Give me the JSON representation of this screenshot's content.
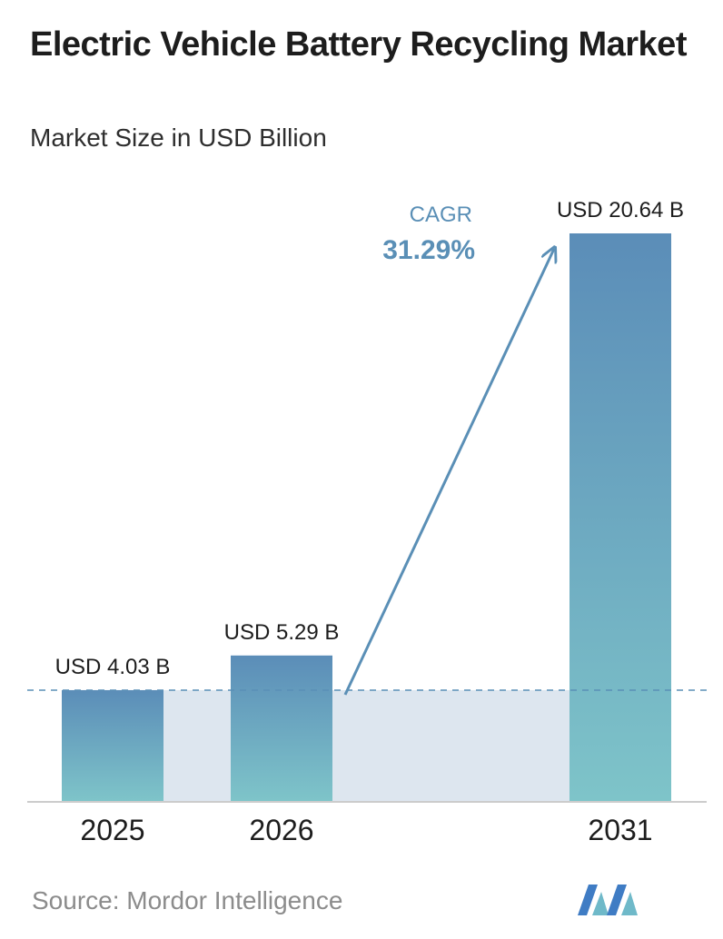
{
  "title": "Electric Vehicle Battery Recycling Market",
  "subtitle": "Market Size in USD Billion",
  "source": "Source:  Mordor Intelligence",
  "logo_icon": "mordor-intelligence-logo",
  "colors": {
    "bar_top": "#5b8db8",
    "bar_bottom": "#7ec4c9",
    "band": "#dde6ef",
    "arrow": "#5a8fb6",
    "cagr": "#5a8fb6",
    "dashed": "#5a8fb6",
    "axis": "#cccccc"
  },
  "cagr": {
    "label": "CAGR",
    "value": "31.29%"
  },
  "chart_data": {
    "type": "bar",
    "categories": [
      "2025",
      "2026",
      "2031"
    ],
    "values": [
      4.03,
      5.29,
      20.64
    ],
    "data_labels": [
      "USD 4.03 B",
      "USD 5.29 B",
      "USD 20.64 B"
    ],
    "title": "Electric Vehicle Battery Recycling Market",
    "ylabel": "Market Size in USD Billion",
    "grid": false
  }
}
